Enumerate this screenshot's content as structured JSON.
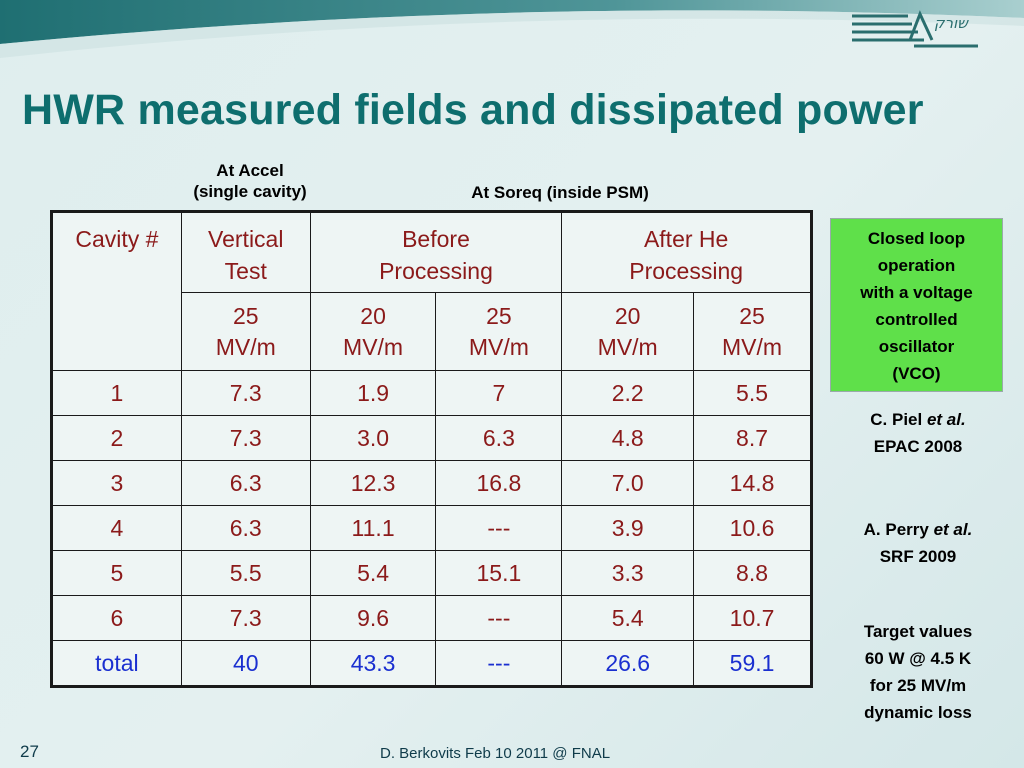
{
  "slide": {
    "title": "HWR measured fields and dissipated power",
    "logo_text": "שורק",
    "label_accel_line1": "At Accel",
    "label_accel_line2": "(single cavity)",
    "label_soreq": "At Soreq (inside PSM)",
    "slide_number": "27",
    "footer": "D. Berkovits Feb 10 2011 @ FNAL"
  },
  "table": {
    "headers": {
      "cavity": "Cavity #",
      "vertical_l1": "Vertical",
      "vertical_l2": "Test",
      "before_l1": "Before",
      "before_l2": "Processing",
      "after_l1": "After He",
      "after_l2": "Processing"
    },
    "subheaders": [
      {
        "value": "25",
        "unit": "MV/m"
      },
      {
        "value": "20",
        "unit": "MV/m"
      },
      {
        "value": "25",
        "unit": "MV/m"
      },
      {
        "value": "20",
        "unit": "MV/m"
      },
      {
        "value": "25",
        "unit": "MV/m"
      }
    ],
    "rows": [
      [
        "1",
        "7.3",
        "1.9",
        "7",
        "2.2",
        "5.5"
      ],
      [
        "2",
        "7.3",
        "3.0",
        "6.3",
        "4.8",
        "8.7"
      ],
      [
        "3",
        "6.3",
        "12.3",
        "16.8",
        "7.0",
        "14.8"
      ],
      [
        "4",
        "6.3",
        "11.1",
        "---",
        "3.9",
        "10.6"
      ],
      [
        "5",
        "5.5",
        "5.4",
        "15.1",
        "3.3",
        "8.8"
      ],
      [
        "6",
        "7.3",
        "9.6",
        "---",
        "5.4",
        "10.7"
      ]
    ],
    "total": [
      "total",
      "40",
      "43.3",
      "---",
      "26.6",
      "59.1"
    ]
  },
  "side": {
    "green_lines": [
      "Closed loop",
      "operation",
      "with a voltage",
      "controlled",
      "oscillator",
      "(VCO)"
    ],
    "ref1_name": "C. Piel",
    "ref1_etal": "et al.",
    "ref1_venue": "EPAC 2008",
    "ref2_name": "A. Perry",
    "ref2_etal": "et al.",
    "ref2_venue": "SRF 2009",
    "target_lines": [
      "Target values",
      "60 W @ 4.5 K",
      "for 25 MV/m",
      "dynamic loss"
    ]
  },
  "colors": {
    "title": "#0e6e6e",
    "cell_text": "#8b1a1a",
    "total_text": "#1a2fd0",
    "green_box": "#5fe04a"
  }
}
